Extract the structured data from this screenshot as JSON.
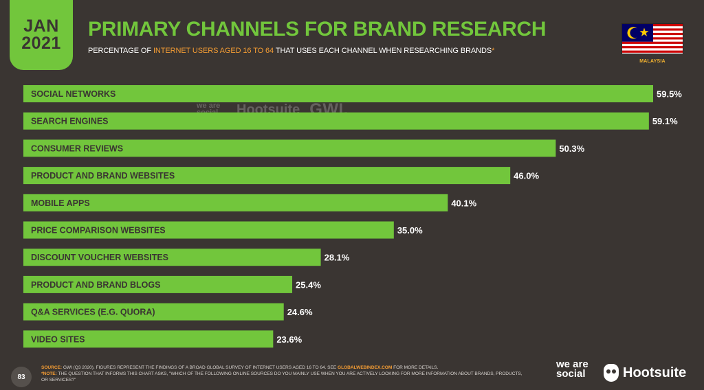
{
  "header": {
    "month": "JAN",
    "year": "2021",
    "title": "PRIMARY CHANNELS FOR BRAND RESEARCH",
    "subtitle_pre": "PERCENTAGE OF ",
    "subtitle_highlight": "INTERNET USERS AGED 16 TO 64",
    "subtitle_post": " THAT USES EACH CHANNEL WHEN RESEARCHING BRANDS",
    "subtitle_mark": "*",
    "country": "MALAYSIA"
  },
  "watermark": {
    "was": "we are social",
    "hootsuite": "Hootsuite",
    "gwi": "GWI."
  },
  "chart_data": {
    "type": "bar",
    "orientation": "horizontal",
    "categories": [
      "SOCIAL NETWORKS",
      "SEARCH ENGINES",
      "CONSUMER REVIEWS",
      "PRODUCT AND BRAND WEBSITES",
      "MOBILE APPS",
      "PRICE COMPARISON WEBSITES",
      "DISCOUNT VOUCHER WEBSITES",
      "PRODUCT AND BRAND BLOGS",
      "Q&A SERVICES (E.G. QUORA)",
      "VIDEO SITES"
    ],
    "values": [
      59.5,
      59.1,
      50.3,
      46.0,
      40.1,
      35.0,
      28.1,
      25.4,
      24.6,
      23.6
    ],
    "labels": [
      "59.5%",
      "59.1%",
      "50.3%",
      "46.0%",
      "40.1%",
      "35.0%",
      "28.1%",
      "25.4%",
      "24.6%",
      "23.6%"
    ],
    "xlim": [
      0,
      59.5
    ],
    "bar_color": "#72c63c",
    "label_color": "#3a3532"
  },
  "footer": {
    "page_number": "83",
    "source_tag": "SOURCE:",
    "source_text": " GWI (Q3 2020). FIGURES REPRESENT THE FINDINGS OF A BROAD GLOBAL SURVEY OF INTERNET USERS AGED 16 TO 64. SEE ",
    "source_link": "GLOBALWEBINDEX.COM",
    "source_tail": " FOR MORE DETAILS.",
    "note_tag": "*NOTE:",
    "note_text": " THE QUESTION THAT INFORMS THIS CHART ASKS, \"WHICH OF THE FOLLOWING ONLINE SOURCES DO YOU MAINLY USE WHEN YOU ARE ACTIVELY LOOKING FOR MORE INFORMATION ABOUT BRANDS, PRODUCTS, OR SERVICES?\"",
    "logo_was": "we are social",
    "logo_hootsuite": "Hootsuite"
  },
  "colors": {
    "background": "#3a3532",
    "accent_green": "#72c63c",
    "accent_orange": "#f39c34"
  }
}
